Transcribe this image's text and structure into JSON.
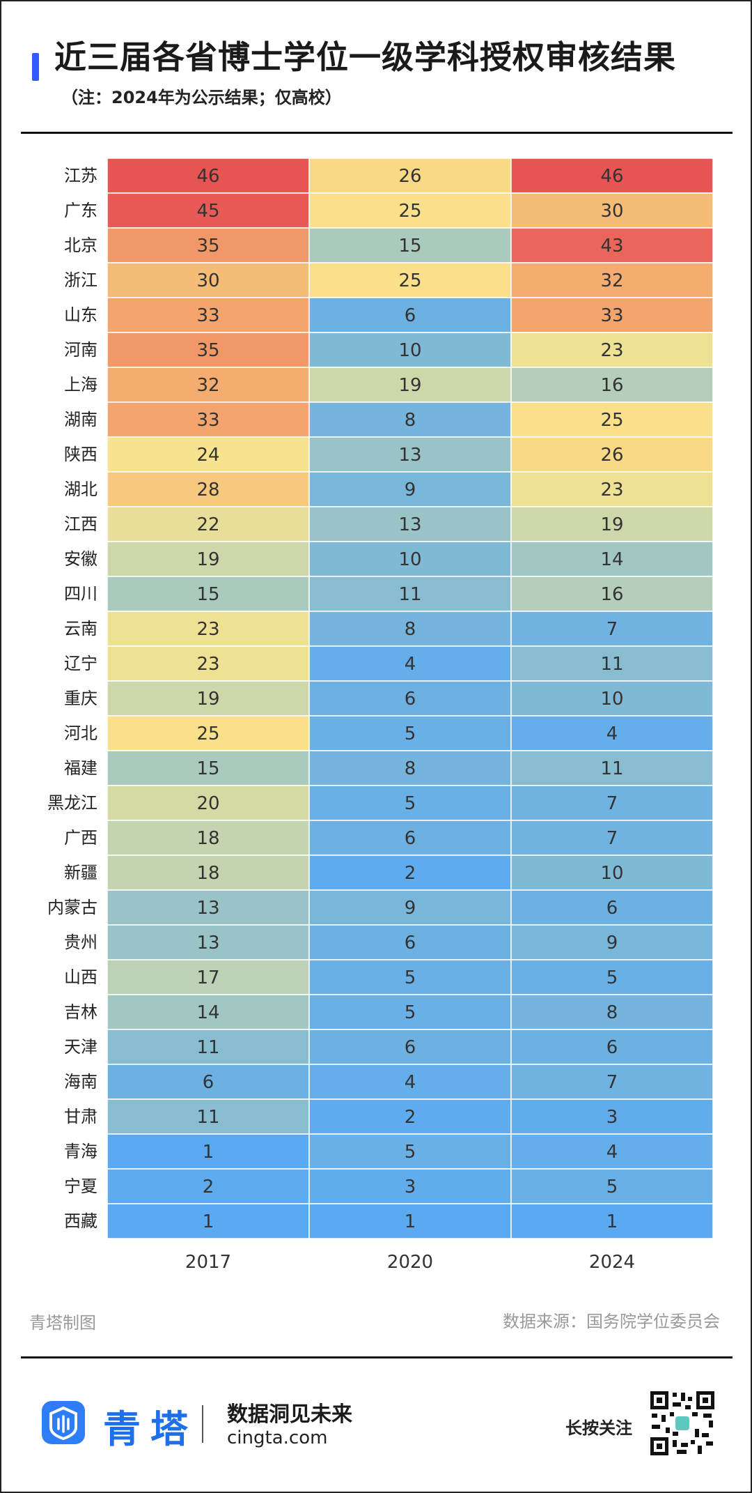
{
  "title": "近三届各省博士学位一级学科授权审核结果",
  "subtitle": "（注：2024年为公示结果；仅高校）",
  "watermark_text": "青塔",
  "brand_note": "青塔制图",
  "source": "数据来源：国务院学位委员会",
  "footer": {
    "logo_text": "青塔",
    "slogan": "数据洞见未来",
    "url": "cingta.com",
    "follow": "长按关注"
  },
  "colors": {
    "accent": "#2f5bff",
    "brand_blue": "#2d7df6",
    "scale_low": "#5aaaf2",
    "scale_mid": "#fae48c",
    "scale_high": "#e65454"
  },
  "chart_data": {
    "type": "heatmap",
    "title": "近三届各省博士学位一级学科授权审核结果",
    "subtitle": "（注：2024年为公示结果；仅高校）",
    "columns": [
      "2017",
      "2020",
      "2024"
    ],
    "rows": [
      "江苏",
      "广东",
      "北京",
      "浙江",
      "山东",
      "河南",
      "上海",
      "湖南",
      "陕西",
      "湖北",
      "江西",
      "安徽",
      "四川",
      "云南",
      "辽宁",
      "重庆",
      "河北",
      "福建",
      "黑龙江",
      "广西",
      "新疆",
      "内蒙古",
      "贵州",
      "山西",
      "吉林",
      "天津",
      "海南",
      "甘肃",
      "青海",
      "宁夏",
      "西藏"
    ],
    "values": [
      [
        46,
        26,
        46
      ],
      [
        45,
        25,
        30
      ],
      [
        35,
        15,
        43
      ],
      [
        30,
        25,
        32
      ],
      [
        33,
        6,
        33
      ],
      [
        35,
        10,
        23
      ],
      [
        32,
        19,
        16
      ],
      [
        33,
        8,
        25
      ],
      [
        24,
        13,
        26
      ],
      [
        28,
        9,
        23
      ],
      [
        22,
        13,
        19
      ],
      [
        19,
        10,
        14
      ],
      [
        15,
        11,
        16
      ],
      [
        23,
        8,
        7
      ],
      [
        23,
        4,
        11
      ],
      [
        19,
        6,
        10
      ],
      [
        25,
        5,
        4
      ],
      [
        15,
        8,
        11
      ],
      [
        20,
        5,
        7
      ],
      [
        18,
        6,
        7
      ],
      [
        18,
        2,
        10
      ],
      [
        13,
        9,
        6
      ],
      [
        13,
        6,
        9
      ],
      [
        17,
        5,
        5
      ],
      [
        14,
        5,
        8
      ],
      [
        11,
        6,
        6
      ],
      [
        6,
        4,
        7
      ],
      [
        11,
        2,
        3
      ],
      [
        1,
        5,
        4
      ],
      [
        2,
        3,
        5
      ],
      [
        1,
        1,
        1
      ]
    ],
    "color_range": [
      1,
      46
    ],
    "grid": true,
    "legend": "none"
  }
}
